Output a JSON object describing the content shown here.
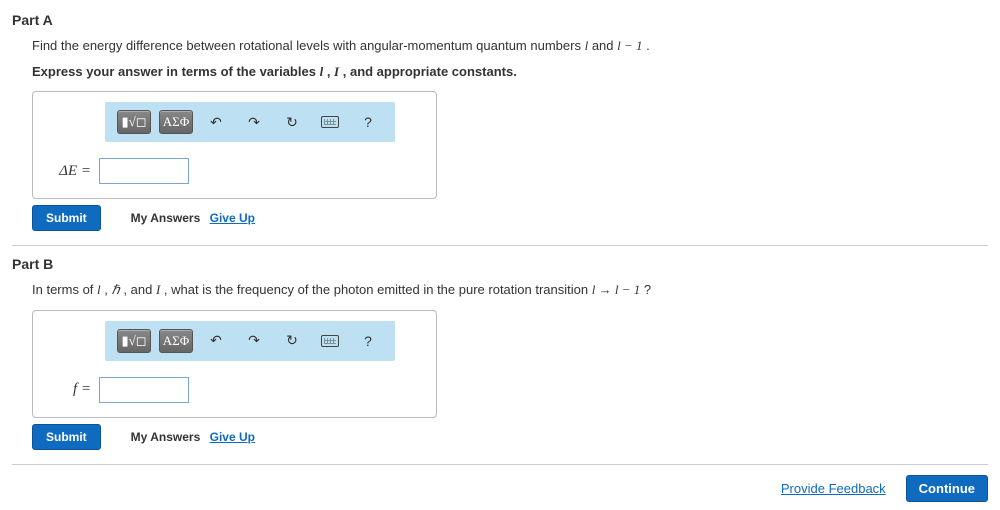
{
  "partA": {
    "header": "Part A",
    "prompt_pre": "Find the energy difference between rotational levels with angular-momentum quantum numbers ",
    "prompt_var1": "l",
    "prompt_mid": " and ",
    "prompt_var2": "l − 1",
    "prompt_post": ".",
    "instruction_pre": "Express your answer in terms of the variables ",
    "instruction_v1": "l",
    "instruction_sep": ", ",
    "instruction_v2": "I",
    "instruction_post": ", and appropriate constants.",
    "eq_label": "ΔE =",
    "submit": "Submit",
    "my_answers": "My Answers",
    "give_up": "Give Up"
  },
  "partB": {
    "header": "Part B",
    "prompt_pre": "In terms of ",
    "prompt_v1": "l",
    "prompt_c1": ",",
    "prompt_v2": "ℏ",
    "prompt_c2": " , and ",
    "prompt_v3": "I",
    "prompt_mid": ", what is the frequency of the photon emitted in the pure rotation transition ",
    "prompt_trans": "l → l − 1",
    "prompt_post": "?",
    "eq_label": "f =",
    "submit": "Submit",
    "my_answers": "My Answers",
    "give_up": "Give Up"
  },
  "toolbar": {
    "template_glyph": "▮",
    "root_glyph": "√◻",
    "greek_label": "ΑΣΦ",
    "undo": "↶",
    "redo": "↷",
    "reset": "↻",
    "help": "?"
  },
  "footer": {
    "feedback": "Provide Feedback",
    "continue": "Continue"
  },
  "colors": {
    "accent": "#0f6bbf",
    "toolbar_bg": "#bde0f2",
    "border": "#bbb",
    "input_border": "#7aa7d6"
  }
}
